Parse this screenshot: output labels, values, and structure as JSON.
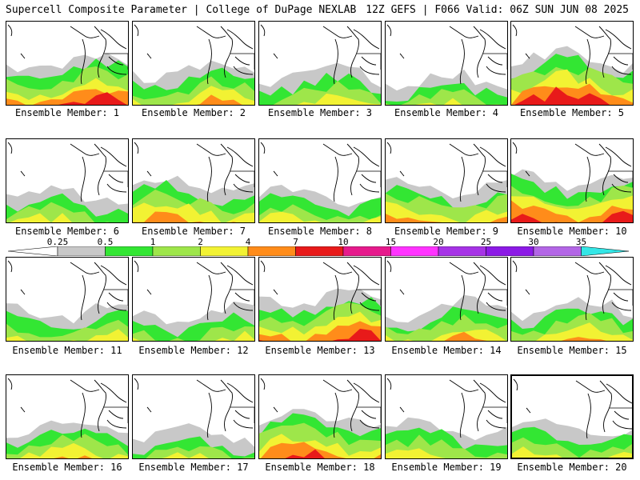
{
  "header": {
    "title_left": "Supercell Composite Parameter | College of DuPage NEXLAB",
    "title_right": "12Z GEFS | F066 Valid: 06Z SUN JUN 08 2025"
  },
  "colors": {
    "c0": "#c8c8c8",
    "c1": "#33e633",
    "c2": "#9ee64a",
    "c3": "#f2f233",
    "c4": "#ff8c1a",
    "c5": "#e81a1a",
    "c6": "#e61a8c",
    "c7": "#ff33ff",
    "c8": "#a633e6",
    "c9": "#8c1ae6",
    "c10": "#b366e6",
    "c11": "#33e6e6"
  },
  "colorbar": {
    "labels": [
      "0.25",
      "0.5",
      "1",
      "2",
      "4",
      "7",
      "10",
      "15",
      "20",
      "25",
      "30",
      "35"
    ]
  },
  "members": [
    {
      "label": "Ensemble Member: 1",
      "level": 0.78
    },
    {
      "label": "Ensemble Member: 2",
      "level": 0.62
    },
    {
      "label": "Ensemble Member: 3",
      "level": 0.55
    },
    {
      "label": "Ensemble Member: 4",
      "level": 0.45
    },
    {
      "label": "Ensemble Member: 5",
      "level": 0.85
    },
    {
      "label": "Ensemble Member: 6",
      "level": 0.5
    },
    {
      "label": "Ensemble Member: 7",
      "level": 0.7
    },
    {
      "label": "Ensemble Member: 8",
      "level": 0.52
    },
    {
      "label": "Ensemble Member: 9",
      "level": 0.66
    },
    {
      "label": "Ensemble Member: 10",
      "level": 0.8
    },
    {
      "label": "Ensemble Member: 11",
      "level": 0.55
    },
    {
      "label": "Ensemble Member: 12",
      "level": 0.48
    },
    {
      "label": "Ensemble Member: 13",
      "level": 0.78
    },
    {
      "label": "Ensemble Member: 14",
      "level": 0.6
    },
    {
      "label": "Ensemble Member: 15",
      "level": 0.62
    },
    {
      "label": "Ensemble Member: 16",
      "level": 0.6
    },
    {
      "label": "Ensemble Member: 17",
      "level": 0.45
    },
    {
      "label": "Ensemble Member: 18",
      "level": 0.75
    },
    {
      "label": "Ensemble Member: 19",
      "level": 0.55
    },
    {
      "label": "Ensemble Member: 20",
      "level": 0.58
    }
  ]
}
